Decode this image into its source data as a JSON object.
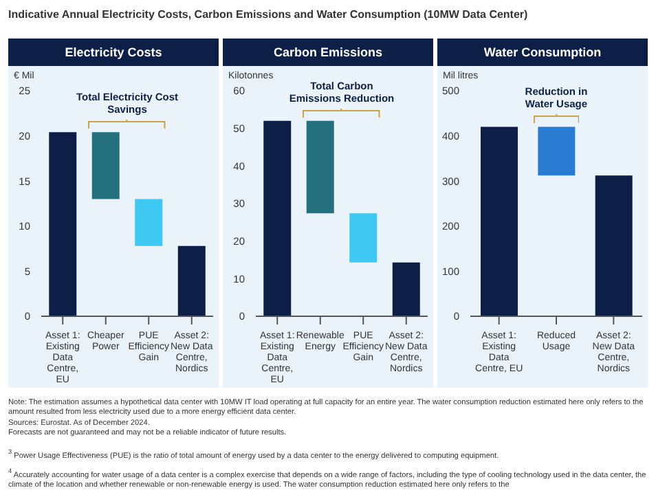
{
  "chart_data": [
    {
      "type": "bar",
      "title": "Electricity Costs",
      "ylabel": "€ Mil",
      "categories": [
        "Asset 1: Existing Data Centre, EU",
        "Cheaper Power",
        "PUE Efficiency Gain",
        "Asset 2: New Data Centre, Nordics"
      ],
      "values": [
        20.4,
        7.4,
        5.2,
        7.8
      ],
      "base": [
        0,
        13,
        7.8,
        0
      ],
      "colors": [
        "#0e1f47",
        "#24707f",
        "#3ec8f2",
        "#0e1f47"
      ],
      "ylim": [
        0,
        25
      ],
      "yticks": [
        0,
        5,
        10,
        15,
        20,
        25
      ],
      "grid": false,
      "annotations": [
        "Total Electricity Cost Savings"
      ]
    },
    {
      "type": "bar",
      "title": "Carbon Emissions",
      "ylabel": "Kilotonnes",
      "categories": [
        "Asset 1: Existing Data Centre, EU",
        "Renewable Energy",
        "PUE Efficiency Gain",
        "Asset 2: New Data Centre, Nordics"
      ],
      "values": [
        52,
        24.6,
        13.1,
        14.3
      ],
      "base": [
        0,
        27.4,
        14.3,
        0
      ],
      "colors": [
        "#0e1f47",
        "#24707f",
        "#3ec8f2",
        "#0e1f47"
      ],
      "ylim": [
        0,
        60
      ],
      "yticks": [
        0,
        10,
        20,
        30,
        40,
        50,
        60
      ],
      "grid": false,
      "annotations": [
        "Total Carbon Emissions Reduction"
      ]
    },
    {
      "type": "bar",
      "title": "Water Consumption",
      "ylabel": "Mil litres",
      "categories": [
        "Asset 1: Existing Data Centre, EU",
        "Reduced Usage",
        "Asset 2: New Data Centre, Nordics"
      ],
      "values": [
        420,
        108,
        312
      ],
      "base": [
        0,
        312,
        0
      ],
      "colors": [
        "#0e1f47",
        "#2a7bd2",
        "#0e1f47"
      ],
      "ylim": [
        0,
        500
      ],
      "yticks": [
        0,
        100,
        200,
        300,
        400,
        500
      ],
      "grid": false,
      "annotations": [
        "Reduction in Water Usage"
      ]
    },
    {
      "type": "other",
      "title": "Indicative Annual Electricity Costs, Carbon Emissions and Water Consumption (10MW Data Center)",
      "annotations": [
        "Note: The estimation assumes a hypothetical data center with 10MW IT load operating at full capacity for an entire year. The water consumption reduction estimated here only refers to the amount resulted from less electricity used due to a more energy efficient data center.",
        "Sources: Eurostat. As of December 2024.",
        "Forecasts are not guaranteed and may not be a reliable indicator of future results.",
        "$^{3}$ Power Usage Effectiveness (PUE) is the ratio of total amount of energy used by a data center to the energy delivered to computing equipment.",
        "$^{4}$ Accurately accounting for water usage of a data center is a complex exercise that depends on a wide range of factors, including the type of cooling technology used in the data center, the climate of the location and whether renewable or non-renewable energy is used. The water consumption reduction estimated here only refers to the"
      ]
    }
  ]
}
